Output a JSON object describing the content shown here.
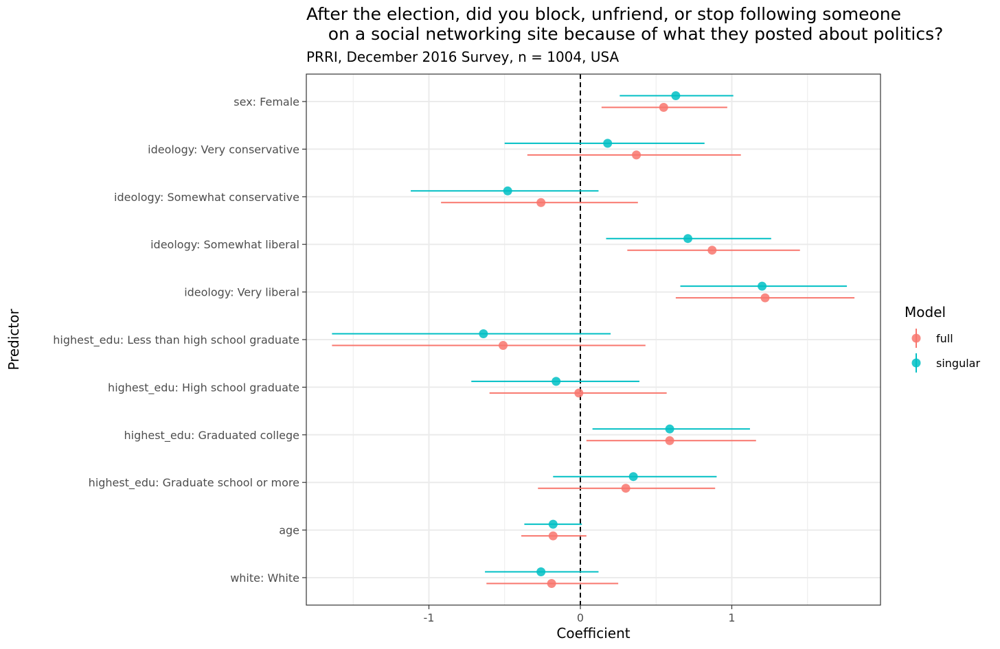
{
  "chart_data": {
    "type": "scatter",
    "title": "After the election, did you block, unfriend, or stop following someone\n    on a social networking site because of what they posted about politics?",
    "subtitle": "PRRI, December 2016 Survey, n = 1004, USA",
    "xlabel": "Coefficient",
    "ylabel": "Predictor",
    "xlim": [
      -1.81,
      1.98
    ],
    "xticks": [
      -1,
      0,
      1
    ],
    "xtick_labels": [
      "-1",
      "0",
      "1"
    ],
    "reference_line_x": 0,
    "grid": true,
    "legend": {
      "title": "Model",
      "position": "right",
      "entries": [
        "full",
        "singular"
      ]
    },
    "categories": [
      "sex: Female",
      "ideology: Very conservative",
      "ideology: Somewhat conservative",
      "ideology: Somewhat liberal",
      "ideology: Very liberal",
      "highest_edu: Less than high school graduate",
      "highest_edu: High school graduate",
      "highest_edu: Graduated college",
      "highest_edu: Graduate school or more",
      "age",
      "white: White"
    ],
    "series": [
      {
        "name": "full",
        "color": "#F8766D",
        "estimates": [
          0.55,
          0.37,
          -0.26,
          0.87,
          1.22,
          -0.51,
          -0.01,
          0.59,
          0.3,
          -0.18,
          -0.19
        ],
        "lower": [
          0.14,
          -0.35,
          -0.92,
          0.31,
          0.63,
          -1.64,
          -0.6,
          0.04,
          -0.28,
          -0.39,
          -0.62
        ],
        "upper": [
          0.97,
          1.06,
          0.38,
          1.45,
          1.81,
          0.43,
          0.57,
          1.16,
          0.89,
          0.04,
          0.25
        ]
      },
      {
        "name": "singular",
        "color": "#00BFC4",
        "estimates": [
          0.63,
          0.18,
          -0.48,
          0.71,
          1.2,
          -0.64,
          -0.16,
          0.59,
          0.35,
          -0.18,
          -0.26
        ],
        "lower": [
          0.26,
          -0.5,
          -1.12,
          0.17,
          0.66,
          -1.64,
          -0.72,
          0.08,
          -0.18,
          -0.37,
          -0.63
        ],
        "upper": [
          1.01,
          0.82,
          0.12,
          1.26,
          1.76,
          0.2,
          0.39,
          1.12,
          0.9,
          0.01,
          0.12
        ]
      }
    ]
  }
}
